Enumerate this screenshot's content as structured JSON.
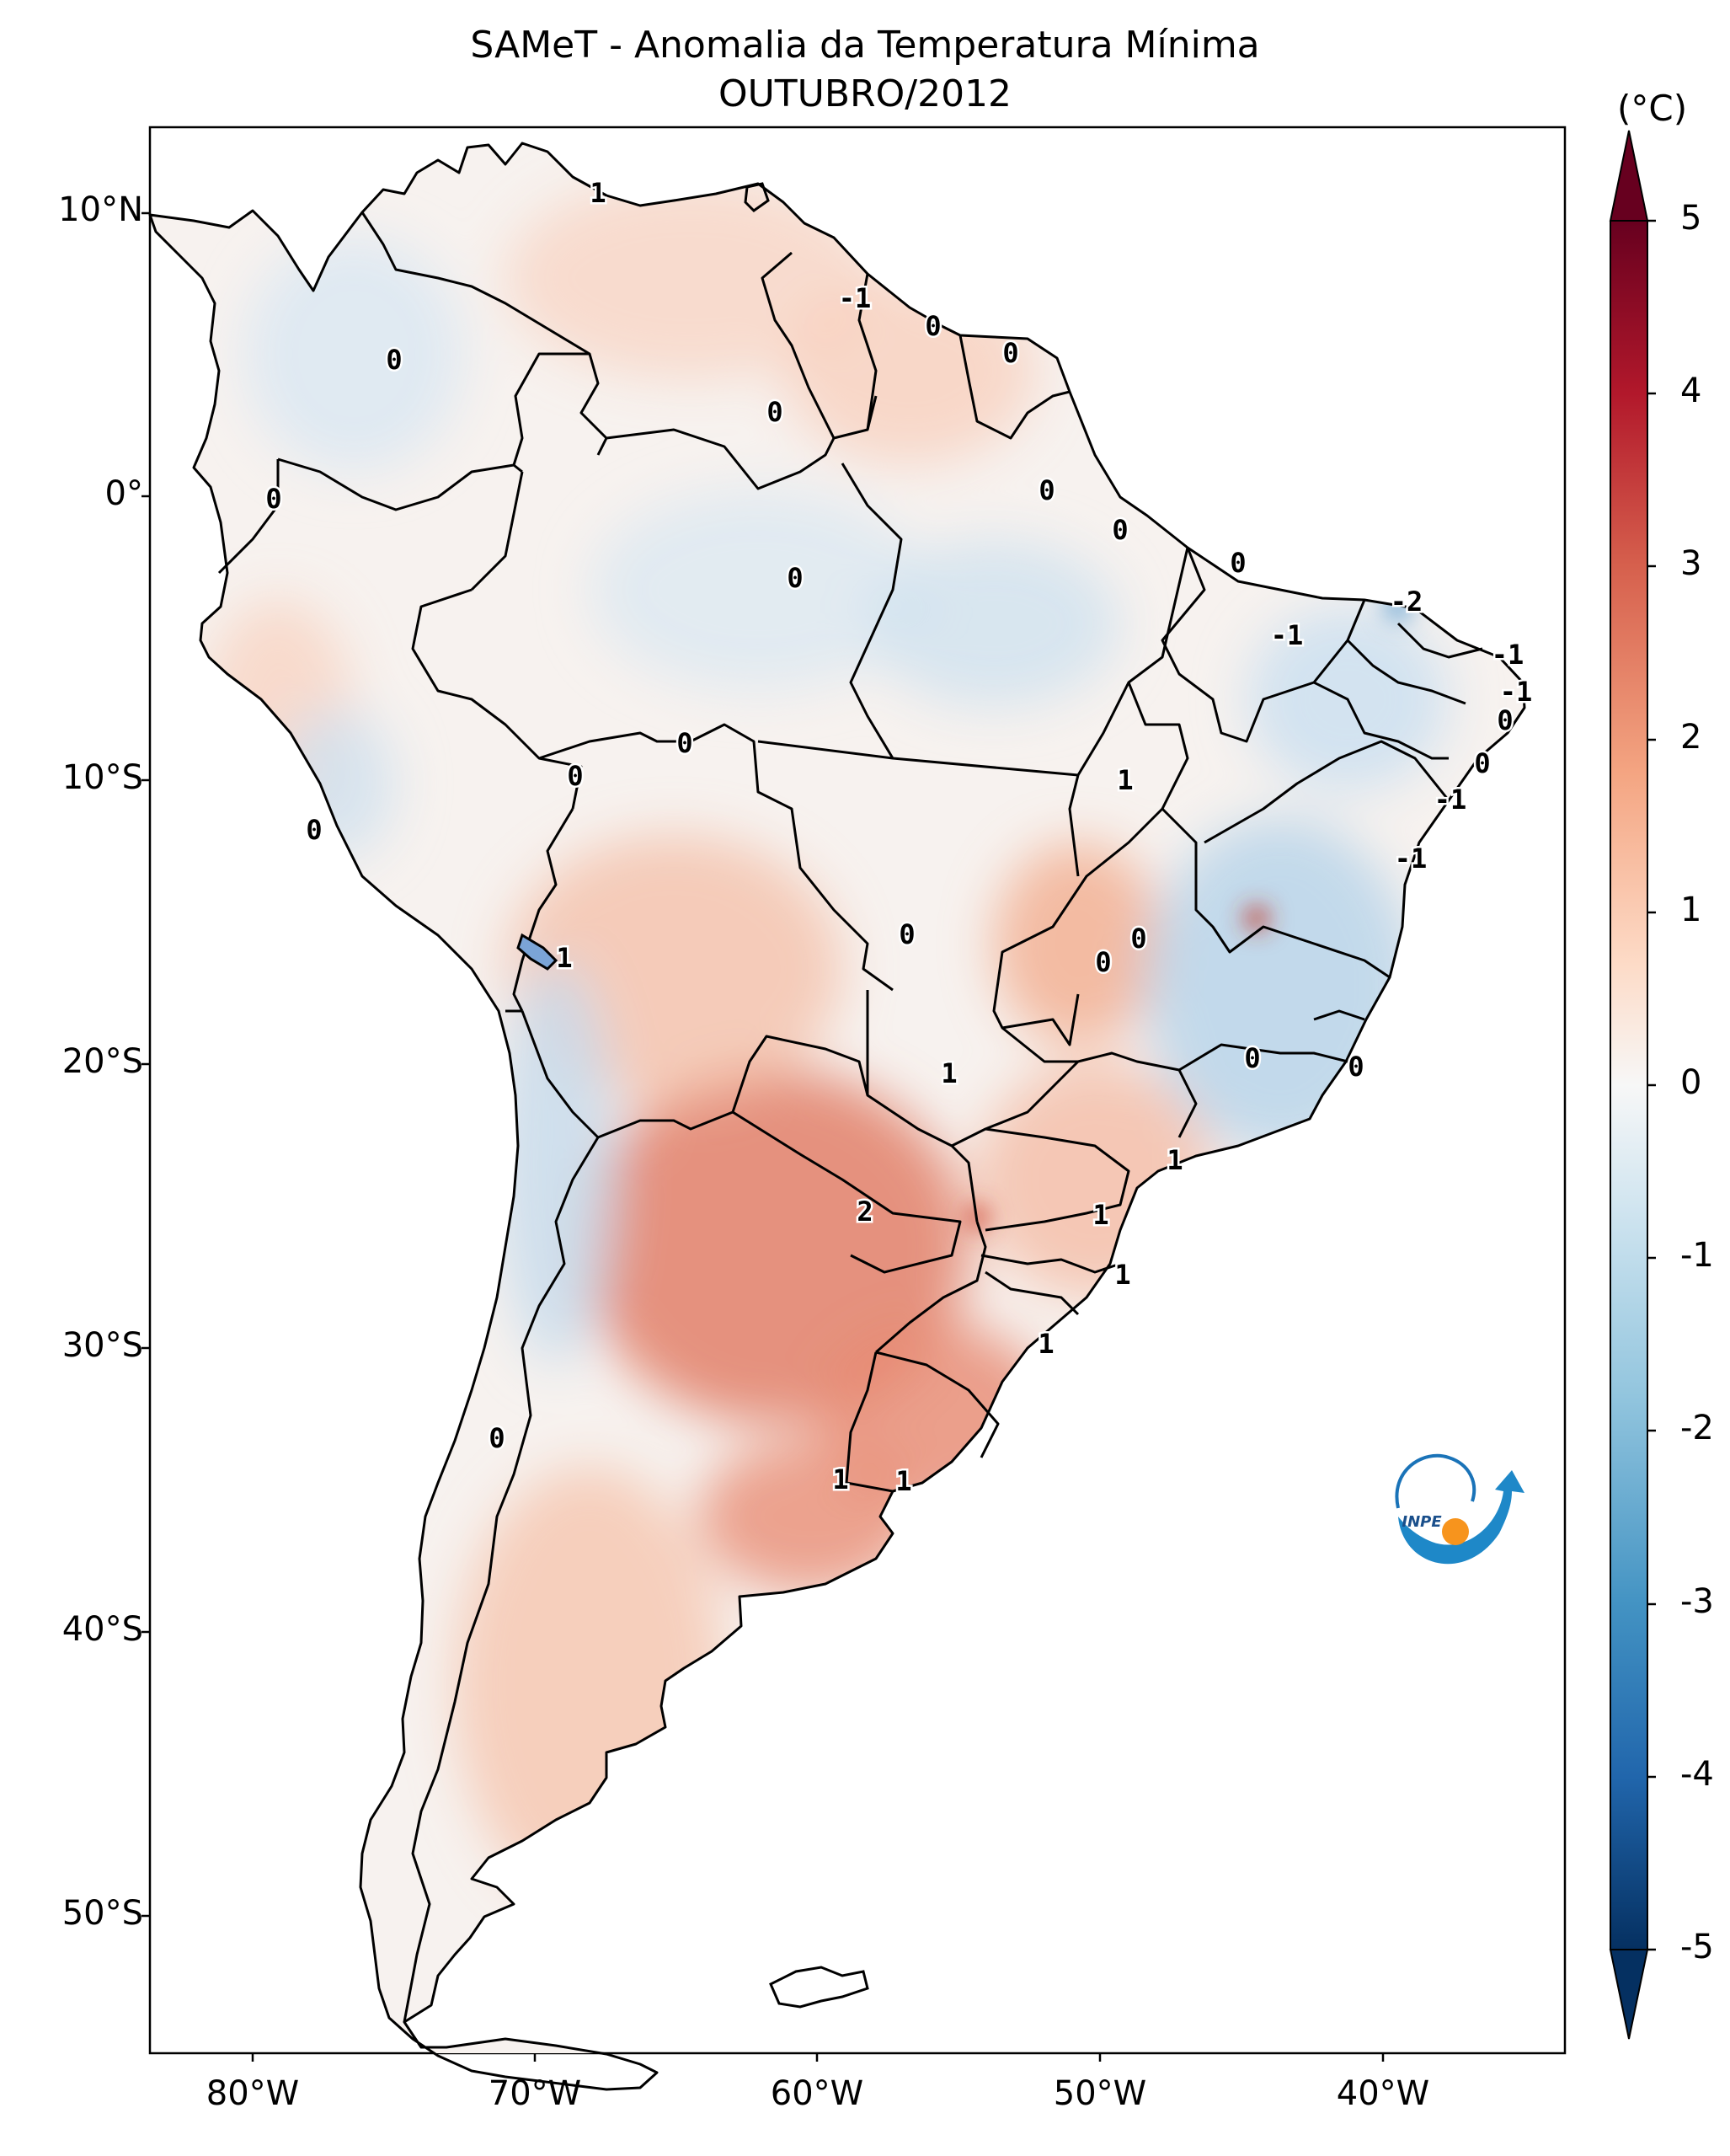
{
  "title": "SAMeT - Anomalia da Temperatura Mínima",
  "subtitle": "OUTUBRO/2012",
  "colorbar": {
    "unit": "(°C)",
    "ticks": [
      "5",
      "4",
      "3",
      "2",
      "1",
      "0",
      "-1",
      "-2",
      "-3",
      "-4",
      "-5"
    ],
    "range": [
      -5,
      5
    ],
    "colors": [
      "#053061",
      "#2166ac",
      "#4393c3",
      "#92c5de",
      "#d1e5f0",
      "#f7f7f7",
      "#fddbc7",
      "#f4a582",
      "#d6604d",
      "#b2182b",
      "#67001f"
    ]
  },
  "axes": {
    "lat_ticks": [
      "10°N",
      "0°",
      "10°S",
      "20°S",
      "30°S",
      "40°S",
      "50°S"
    ],
    "lon_ticks": [
      "80°W",
      "70°W",
      "60°W",
      "50°W",
      "40°W"
    ]
  },
  "contour_labels": [
    "1",
    "-1",
    "0",
    "0",
    "0",
    "0",
    "0",
    "0",
    "0",
    "0",
    "0",
    "-2",
    "-1",
    "-1",
    "-1",
    "0",
    "0",
    "-1",
    "-1",
    "0",
    "0",
    "1",
    "0",
    "0",
    "0",
    "1",
    "1",
    "0",
    "0",
    "1",
    "2",
    "1",
    "1",
    "1",
    "0",
    "1",
    "1",
    "0"
  ],
  "logo": {
    "text": "INPE"
  }
}
